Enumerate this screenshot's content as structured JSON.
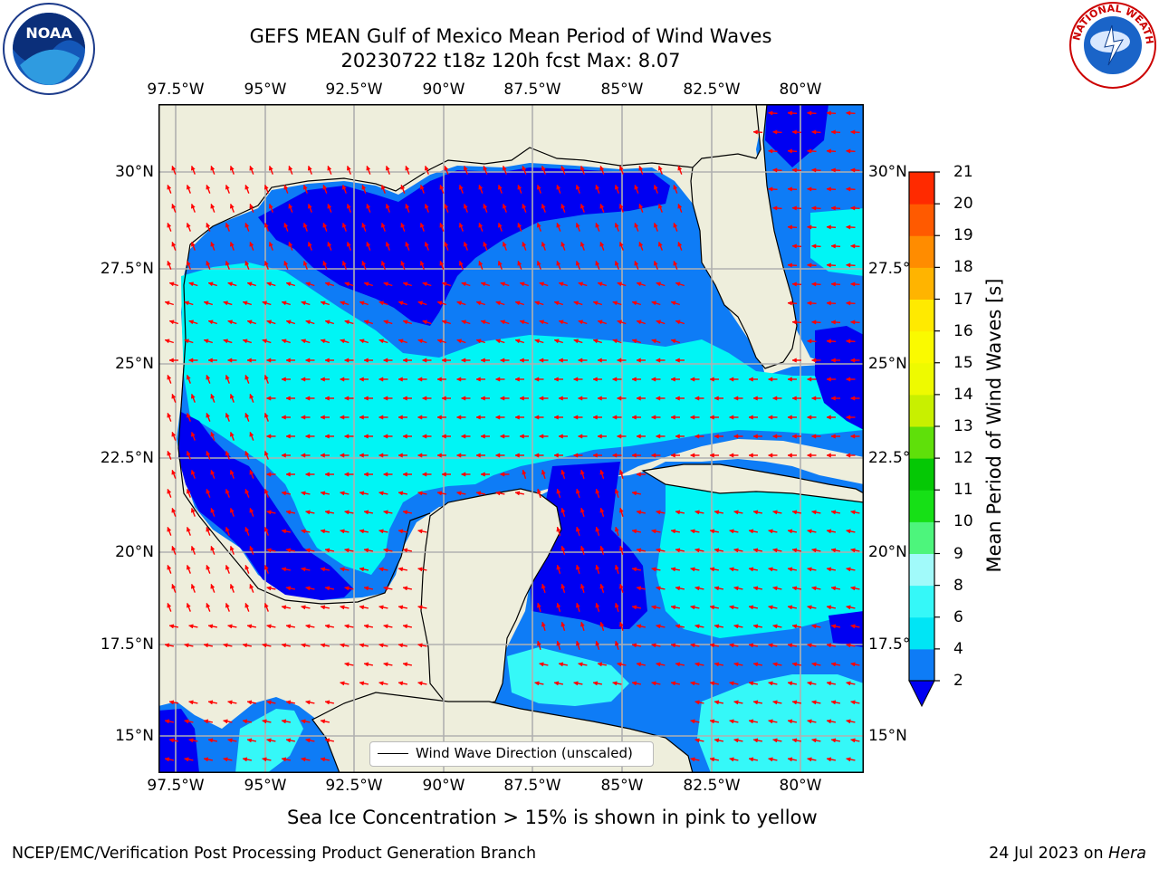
{
  "title_line1": "GEFS MEAN Gulf of Mexico Mean Period of Wind Waves",
  "title_line2": "20230722 t18z 120h fcst   Max: 8.07",
  "lon_ticks": [
    "97.5°W",
    "95°W",
    "92.5°W",
    "90°W",
    "87.5°W",
    "85°W",
    "82.5°W",
    "80°W"
  ],
  "lat_ticks_left": [
    "30°N",
    "27.5°N",
    "25°N",
    "22.5°N",
    "20°N",
    "17.5°N",
    "15°N"
  ],
  "lat_ticks_right": [
    "30°N",
    "27.5°N",
    "25°N",
    "22.5°N",
    "20°N",
    "17.5°N",
    "15°N"
  ],
  "legend_label": "Wind Wave Direction (unscaled)",
  "colorbar": {
    "label": "Mean Period of Wind Waves [s]",
    "ticks": [
      "2",
      "4",
      "6",
      "8",
      "9",
      "10",
      "11",
      "12",
      "13",
      "14",
      "15",
      "16",
      "17",
      "18",
      "19",
      "20",
      "21"
    ],
    "colors": [
      "#0e7cf6",
      "#00e5f5",
      "#35f8f8",
      "#a1fafa",
      "#4df57c",
      "#16e016",
      "#05c805",
      "#5fe00a",
      "#c8f000",
      "#eefa00",
      "#fafa00",
      "#ffea00",
      "#ffb400",
      "#ff8c00",
      "#ff5a00",
      "#ff2a00"
    ],
    "extend_color": "#0000f2"
  },
  "ice_note": "Sea Ice Concentration > 15% is shown in pink to yellow",
  "footer_left": "NCEP/EMC/Verification Post Processing Product Generation Branch",
  "footer_date": "24 Jul 2023 on",
  "footer_machine": "Hera",
  "logos": {
    "left": "NOAA",
    "right": "NATIONAL WEATHER SERVICE"
  },
  "colors": {
    "land": "#eeeedc",
    "dark_blue": "#0000f2",
    "mid_blue": "#0e7cf6",
    "cyan": "#00f5f5",
    "arrow": "#ff0000",
    "grid": "#b0b0b0"
  }
}
